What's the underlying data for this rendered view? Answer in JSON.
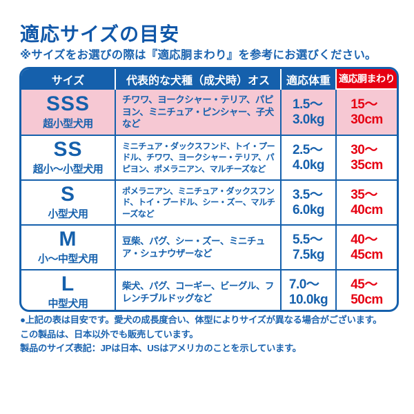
{
  "page": {
    "title": "適応サイズの目安",
    "subtitle": "※サイズをお選びの際は『適応胴まわり』を参考にお選びください。"
  },
  "table": {
    "headers": [
      "サイズ",
      "代表的な犬種（成犬時）オス",
      "適応体重",
      "適応胴まわり"
    ],
    "rows": [
      {
        "size": "SSS",
        "size_sub": "超小型犬用",
        "breeds": "チワワ、ヨークシャー・テリア、パピヨン、ミニチュア・ピンシャー、子犬など",
        "weight": "1.5〜\n3.0kg",
        "waist": "15〜\n30cm",
        "highlighted": true
      },
      {
        "size": "SS",
        "size_sub": "超小〜小型犬用",
        "breeds": "ミニチュア・ダックスフンド、トイ・プードル、チワワ、ヨークシャー・テリア、パピヨン、ポメラニアン、マルチーズなど",
        "weight": "2.5〜\n4.0kg",
        "waist": "30〜\n35cm",
        "highlighted": false
      },
      {
        "size": "S",
        "size_sub": "小型犬用",
        "breeds": "ポメラニアン、ミニチュア・ダックスフンド、トイ・プードル、シー・ズー、マルチーズなど",
        "weight": "3.5〜\n6.0kg",
        "waist": "35〜\n40cm",
        "highlighted": false
      },
      {
        "size": "M",
        "size_sub": "小〜中型犬用",
        "breeds": "豆柴、パグ、シー・ズー、ミニチュア・シュナウザーなど",
        "weight": "5.5〜\n7.5kg",
        "waist": "40〜\n45cm",
        "highlighted": false
      },
      {
        "size": "L",
        "size_sub": "中型犬用",
        "breeds": "柴犬、パグ、コーギー、ビーグル、フレンチブルドッグなど",
        "weight": "7.0〜\n10.0kg",
        "waist": "45〜\n50cm",
        "highlighted": false
      }
    ]
  },
  "footer": {
    "notes": [
      "●上記の表は目安です。愛犬の成長度合い、体型によりサイズが異なる場合がございます。",
      "この製品は、日本以外でも販売しています。",
      "製品のサイズ表記：JPは日本、USはアメリカのことを示しています。"
    ]
  },
  "colors": {
    "accent_blue": "#1560ac",
    "accent_red": "#e60012",
    "highlight_pink": "#f6c8d3",
    "header_text": "#ffffff"
  }
}
